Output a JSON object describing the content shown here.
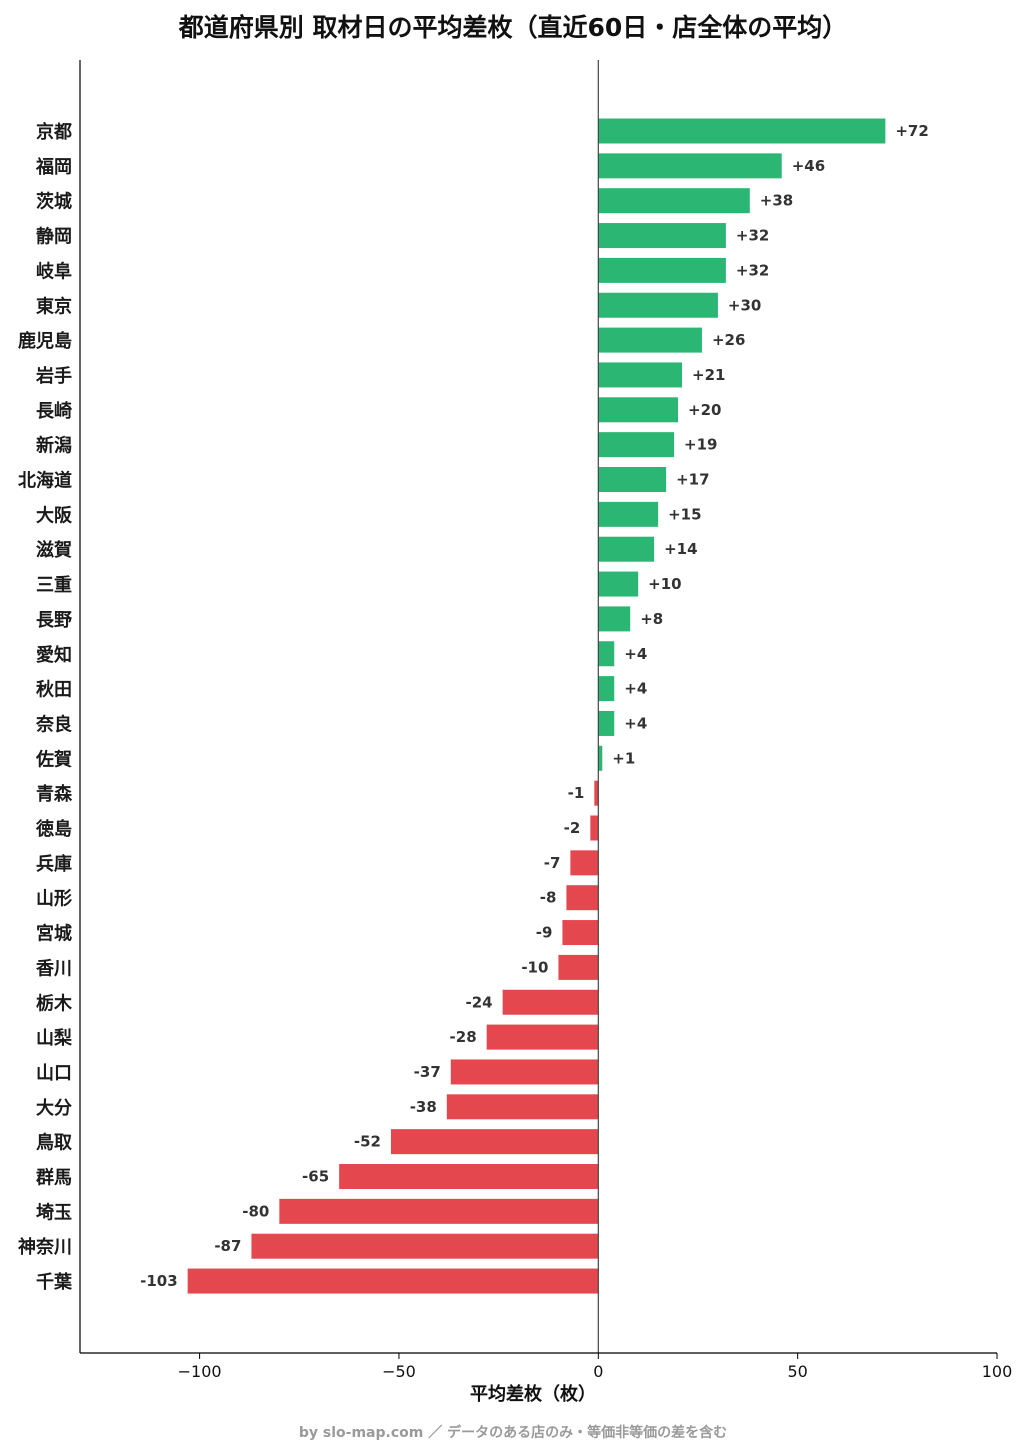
{
  "title": "都道府県別 取材日の平均差枚（直近60日・店全体の平均）",
  "footer": "by slo-map.com ／ データのある店のみ・等価非等価の差を含む",
  "colors": {
    "positive": "#2bb673",
    "negative": "#e5474f",
    "axis": "#000000",
    "zero_line": "#444444"
  },
  "chart_data": {
    "type": "bar",
    "orientation": "horizontal",
    "title": "都道府県別 取材日の平均差枚（直近60日・店全体の平均）",
    "xlabel": "平均差枚（枚）",
    "ylabel": "",
    "xlim": [
      -130,
      100
    ],
    "xticks": [
      -100,
      -50,
      0,
      50,
      100
    ],
    "xtick_labels": [
      "−100",
      "−50",
      "0",
      "50",
      "100"
    ],
    "grid": false,
    "categories": [
      "京都",
      "福岡",
      "茨城",
      "静岡",
      "岐阜",
      "東京",
      "鹿児島",
      "岩手",
      "長崎",
      "新潟",
      "北海道",
      "大阪",
      "滋賀",
      "三重",
      "長野",
      "愛知",
      "秋田",
      "奈良",
      "佐賀",
      "青森",
      "徳島",
      "兵庫",
      "山形",
      "宮城",
      "香川",
      "栃木",
      "山梨",
      "山口",
      "大分",
      "鳥取",
      "群馬",
      "埼玉",
      "神奈川",
      "千葉"
    ],
    "values": [
      72,
      46,
      38,
      32,
      32,
      30,
      26,
      21,
      20,
      19,
      17,
      15,
      14,
      10,
      8,
      4,
      4,
      4,
      1,
      -1,
      -2,
      -7,
      -8,
      -9,
      -10,
      -24,
      -28,
      -37,
      -38,
      -52,
      -65,
      -80,
      -87,
      -103
    ],
    "value_labels": [
      "+72",
      "+46",
      "+38",
      "+32",
      "+32",
      "+30",
      "+26",
      "+21",
      "+20",
      "+19",
      "+17",
      "+15",
      "+14",
      "+10",
      "+8",
      "+4",
      "+4",
      "+4",
      "+1",
      "-1",
      "-2",
      "-7",
      "-8",
      "-9",
      "-10",
      "-24",
      "-28",
      "-37",
      "-38",
      "-52",
      "-65",
      "-80",
      "-87",
      "-103"
    ]
  }
}
